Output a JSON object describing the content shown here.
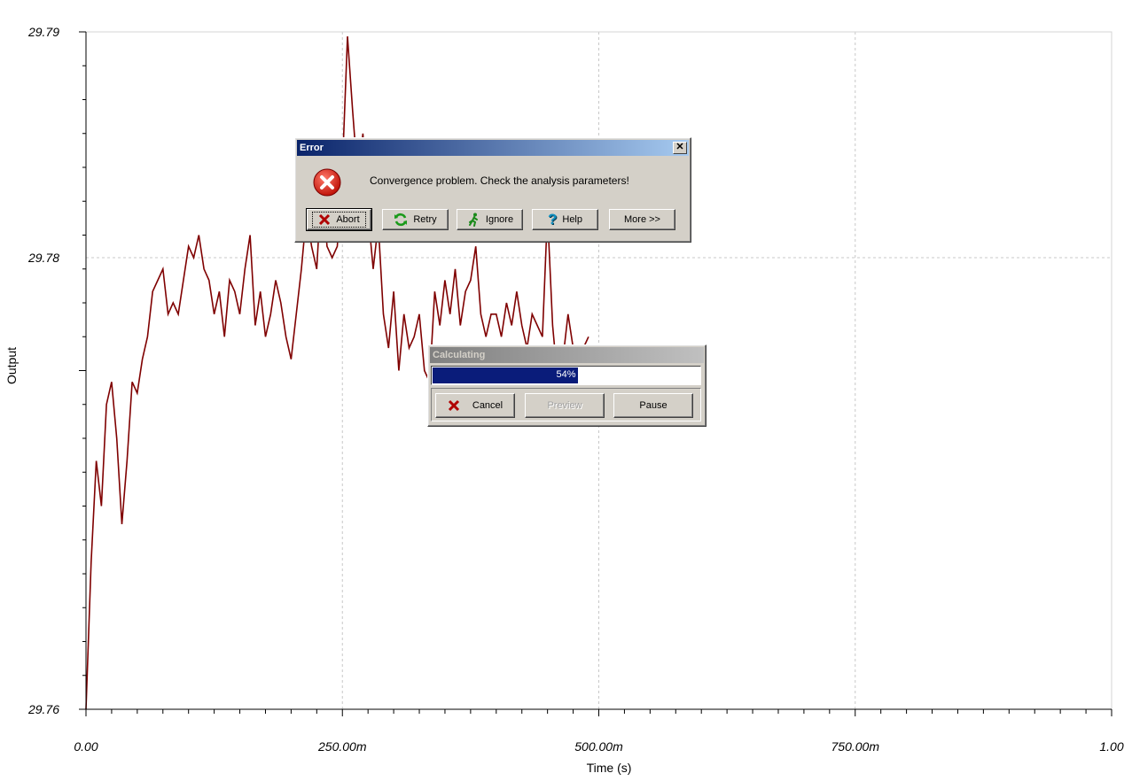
{
  "chart_data": {
    "type": "line",
    "xlabel": "Time (s)",
    "ylabel": "Output",
    "x_range": [
      0,
      1.0
    ],
    "y_range": [
      29.76,
      29.79
    ],
    "x_ticks": [
      "0.00",
      "250.00m",
      "500.00m",
      "750.00m",
      "1.00"
    ],
    "y_ticks": [
      "29.76",
      "29.78",
      "29.79"
    ],
    "grid": true,
    "color": "#7f0000",
    "series": [
      {
        "x": [
          0.0,
          0.005,
          0.01,
          0.015,
          0.02,
          0.025,
          0.03,
          0.035,
          0.04,
          0.045,
          0.05,
          0.055,
          0.06,
          0.065,
          0.07,
          0.075,
          0.08,
          0.085,
          0.09,
          0.095,
          0.1,
          0.105,
          0.11,
          0.115,
          0.12,
          0.125,
          0.13,
          0.135,
          0.14,
          0.145,
          0.15,
          0.155,
          0.16,
          0.165,
          0.17,
          0.175,
          0.18,
          0.185,
          0.19,
          0.195,
          0.2,
          0.205,
          0.21,
          0.215,
          0.22,
          0.225,
          0.23,
          0.235,
          0.24,
          0.245,
          0.25,
          0.255,
          0.26,
          0.265,
          0.27,
          0.275,
          0.28,
          0.285,
          0.29,
          0.295,
          0.3,
          0.305,
          0.31,
          0.315,
          0.32,
          0.325,
          0.33,
          0.335,
          0.34,
          0.345,
          0.35,
          0.355,
          0.36,
          0.365,
          0.37,
          0.375,
          0.38,
          0.385,
          0.39,
          0.395,
          0.4,
          0.405,
          0.41,
          0.415,
          0.42,
          0.425,
          0.43,
          0.435,
          0.44,
          0.445,
          0.45,
          0.455,
          0.46,
          0.465,
          0.47,
          0.475,
          0.48,
          0.485,
          0.49
        ],
        "y": [
          29.76,
          29.7665,
          29.771,
          29.769,
          29.7735,
          29.7745,
          29.772,
          29.7682,
          29.771,
          29.7745,
          29.774,
          29.7755,
          29.7765,
          29.7785,
          29.779,
          29.7795,
          29.7775,
          29.778,
          29.7775,
          29.779,
          29.7805,
          29.78,
          29.781,
          29.7795,
          29.779,
          29.7775,
          29.7785,
          29.7765,
          29.779,
          29.7785,
          29.7775,
          29.7795,
          29.781,
          29.777,
          29.7785,
          29.7765,
          29.7775,
          29.779,
          29.778,
          29.7765,
          29.7755,
          29.7775,
          29.7795,
          29.782,
          29.7805,
          29.7795,
          29.7835,
          29.7805,
          29.78,
          29.7805,
          29.784,
          29.7898,
          29.7865,
          29.7835,
          29.7855,
          29.782,
          29.7795,
          29.7815,
          29.7775,
          29.776,
          29.7785,
          29.775,
          29.7775,
          29.776,
          29.7765,
          29.7775,
          29.775,
          29.7745,
          29.7785,
          29.777,
          29.779,
          29.7775,
          29.7795,
          29.777,
          29.7785,
          29.779,
          29.7805,
          29.7775,
          29.7765,
          29.7775,
          29.7775,
          29.7765,
          29.778,
          29.777,
          29.7785,
          29.777,
          29.776,
          29.7775,
          29.777,
          29.7765,
          29.782,
          29.777,
          29.7745,
          29.7755,
          29.7775,
          29.776,
          29.7755,
          29.776,
          29.7765
        ]
      }
    ]
  },
  "error_dialog": {
    "title": "Error",
    "message": "Convergence problem. Check the analysis parameters!",
    "buttons": {
      "abort": "Abort",
      "retry": "Retry",
      "ignore": "Ignore",
      "help": "Help",
      "more": "More >>"
    }
  },
  "progress_dialog": {
    "title": "Calculating",
    "progress_text": "54%",
    "progress_fraction": 0.54,
    "buttons": {
      "cancel": "Cancel",
      "preview": "Preview",
      "pause": "Pause"
    }
  }
}
